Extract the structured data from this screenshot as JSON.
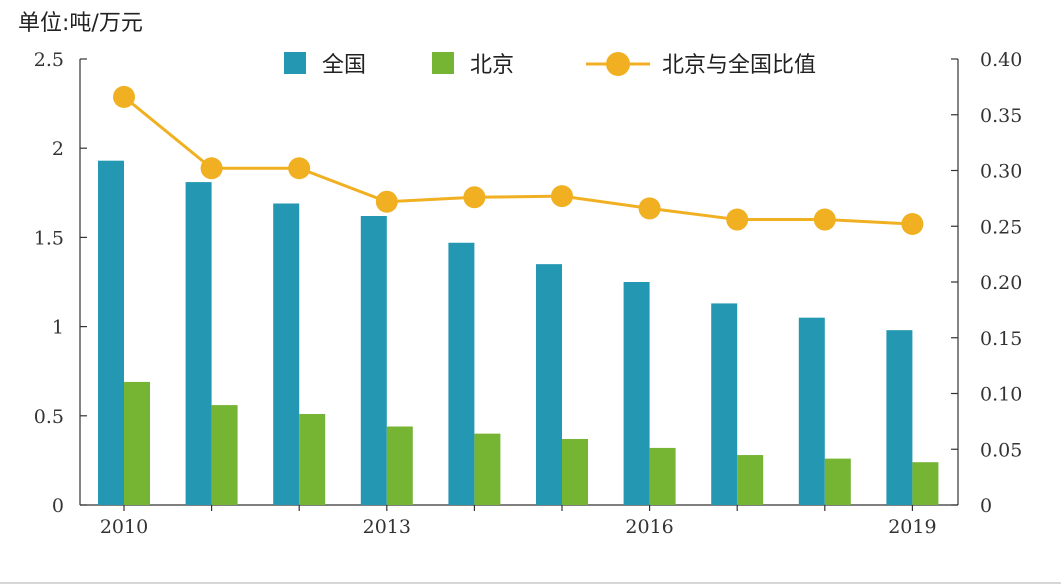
{
  "chart_data": {
    "type": "bar",
    "unit_label": "单位:吨/万元",
    "categories": [
      "2010",
      "2011",
      "2012",
      "2013",
      "2014",
      "2015",
      "2016",
      "2017",
      "2018",
      "2019"
    ],
    "x_tick_labels": [
      "2010",
      "",
      "",
      "2013",
      "",
      "",
      "2016",
      "",
      "",
      "2019"
    ],
    "series": [
      {
        "name": "全国",
        "type": "bar",
        "axis": "left",
        "color": "#2497b2",
        "values": [
          1.93,
          1.81,
          1.69,
          1.62,
          1.47,
          1.35,
          1.25,
          1.13,
          1.05,
          0.98
        ]
      },
      {
        "name": "北京",
        "type": "bar",
        "axis": "left",
        "color": "#76b434",
        "values": [
          0.69,
          0.56,
          0.51,
          0.44,
          0.4,
          0.37,
          0.32,
          0.28,
          0.26,
          0.24
        ]
      },
      {
        "name": "北京与全国比值",
        "type": "line",
        "axis": "right",
        "color": "#f0b021",
        "values": [
          0.366,
          0.302,
          0.302,
          0.272,
          0.276,
          0.277,
          0.266,
          0.256,
          0.256,
          0.252
        ]
      }
    ],
    "y_left": {
      "ylim": [
        0,
        2.5
      ],
      "ticks": [
        "0",
        "0.5",
        "1",
        "1.5",
        "2",
        "2.5"
      ],
      "values": [
        0,
        0.5,
        1,
        1.5,
        2,
        2.5
      ]
    },
    "y_right": {
      "ylim": [
        0,
        0.4
      ],
      "ticks": [
        "0",
        "0.05",
        "0.10",
        "0.15",
        "0.20",
        "0.25",
        "0.30",
        "0.35",
        "0.40"
      ],
      "values": [
        0,
        0.05,
        0.1,
        0.15,
        0.2,
        0.25,
        0.3,
        0.35,
        0.4
      ]
    },
    "legend_placement": "top",
    "grid": false
  }
}
